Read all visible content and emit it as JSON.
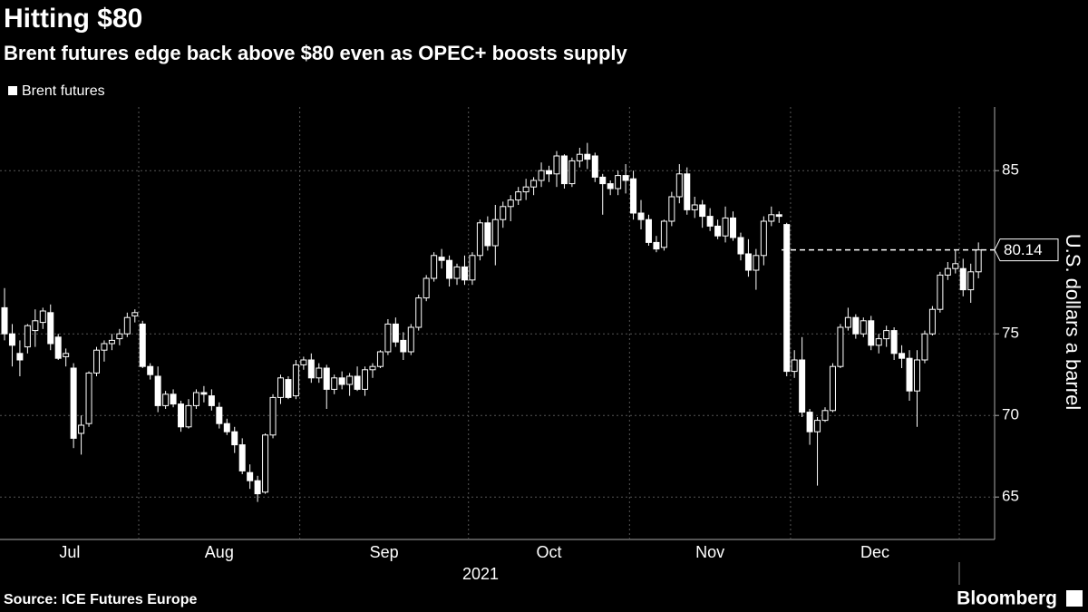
{
  "chart_data": {
    "type": "candlestick",
    "title": "Hitting $80",
    "subtitle": "Brent futures edge back above $80 even as OPEC+ boosts supply",
    "series_name": "Brent futures",
    "color": "#ffffff",
    "y_label": "U.S. dollars a barrel",
    "year_label": "2021",
    "last_value": 80.14,
    "ylim": [
      62.4,
      88.9
    ],
    "yticks": [
      65,
      70,
      75,
      85
    ],
    "grid": true,
    "source": "Source: ICE Futures Europe",
    "brand": "Bloomberg",
    "months": [
      {
        "label": "Jul",
        "ohlc": [
          [
            76.6,
            77.8,
            74.6,
            75.0
          ],
          [
            75.0,
            75.6,
            73.0,
            74.3
          ],
          [
            73.8,
            74.6,
            72.4,
            73.4
          ],
          [
            74.2,
            75.6,
            73.8,
            75.5
          ],
          [
            75.2,
            76.5,
            74.2,
            75.8
          ],
          [
            75.7,
            76.6,
            75.3,
            76.4
          ],
          [
            76.3,
            76.8,
            74.0,
            74.4
          ],
          [
            74.8,
            75.0,
            73.4,
            73.5
          ],
          [
            73.6,
            74.1,
            73.0,
            73.8
          ],
          [
            72.9,
            73.2,
            68.0,
            68.6
          ],
          [
            68.9,
            70.0,
            67.6,
            69.4
          ],
          [
            69.5,
            72.7,
            69.3,
            72.6
          ],
          [
            72.6,
            74.2,
            72.4,
            74.0
          ],
          [
            74.0,
            74.6,
            73.3,
            74.4
          ],
          [
            74.4,
            75.0,
            74.0,
            74.6
          ],
          [
            74.7,
            75.3,
            74.3,
            75.0
          ],
          [
            75.0,
            76.3,
            74.8,
            76.0
          ],
          [
            76.1,
            76.5,
            75.7,
            76.3
          ]
        ]
      },
      {
        "label": "Aug",
        "ohlc": [
          [
            75.6,
            75.8,
            72.9,
            73.0
          ],
          [
            73.0,
            73.2,
            72.2,
            72.5
          ],
          [
            72.4,
            73.0,
            70.2,
            70.6
          ],
          [
            70.6,
            71.5,
            70.4,
            71.3
          ],
          [
            71.3,
            71.6,
            70.5,
            70.7
          ],
          [
            70.7,
            70.9,
            69.0,
            69.3
          ],
          [
            69.3,
            71.0,
            69.2,
            70.6
          ],
          [
            70.6,
            71.6,
            70.4,
            71.4
          ],
          [
            71.4,
            71.8,
            70.8,
            71.3
          ],
          [
            71.2,
            71.6,
            70.3,
            70.6
          ],
          [
            70.5,
            70.8,
            69.2,
            69.5
          ],
          [
            69.5,
            69.8,
            68.8,
            69.0
          ],
          [
            69.0,
            69.3,
            67.7,
            68.2
          ],
          [
            68.2,
            68.6,
            66.4,
            66.6
          ],
          [
            66.5,
            67.0,
            65.5,
            66.0
          ],
          [
            66.0,
            66.3,
            64.7,
            65.2
          ],
          [
            65.3,
            68.9,
            65.2,
            68.8
          ],
          [
            68.8,
            71.3,
            68.6,
            71.1
          ],
          [
            71.1,
            72.5,
            70.7,
            72.3
          ],
          [
            72.2,
            72.4,
            71.0,
            71.1
          ],
          [
            71.2,
            73.4,
            71.0,
            73.1
          ]
        ]
      },
      {
        "label": "Sep",
        "ohlc": [
          [
            73.1,
            73.6,
            72.8,
            73.4
          ],
          [
            73.4,
            73.8,
            72.0,
            72.3
          ],
          [
            72.3,
            73.2,
            72.0,
            72.9
          ],
          [
            72.9,
            73.1,
            70.4,
            71.6
          ],
          [
            71.6,
            72.5,
            71.3,
            72.3
          ],
          [
            72.3,
            72.7,
            71.6,
            71.9
          ],
          [
            71.9,
            72.6,
            71.2,
            72.4
          ],
          [
            72.4,
            73.0,
            71.5,
            71.6
          ],
          [
            71.6,
            73.0,
            71.2,
            72.8
          ],
          [
            72.8,
            73.2,
            72.3,
            73.0
          ],
          [
            73.0,
            74.0,
            72.9,
            73.9
          ],
          [
            73.9,
            75.9,
            73.7,
            75.6
          ],
          [
            75.6,
            76.0,
            74.2,
            74.5
          ],
          [
            74.6,
            75.1,
            73.4,
            73.9
          ],
          [
            73.9,
            75.6,
            73.7,
            75.4
          ],
          [
            75.4,
            77.4,
            75.2,
            77.2
          ],
          [
            77.2,
            78.6,
            77.0,
            78.4
          ],
          [
            78.4,
            80.0,
            78.2,
            79.8
          ],
          [
            79.7,
            80.2,
            79.0,
            79.5
          ],
          [
            79.5,
            79.8,
            77.9,
            78.4
          ],
          [
            78.4,
            79.3,
            78.0,
            79.1
          ],
          [
            79.1,
            79.8,
            78.0,
            78.3
          ]
        ]
      },
      {
        "label": "Oct",
        "ohlc": [
          [
            78.3,
            80.0,
            78.0,
            79.8
          ],
          [
            79.8,
            82.0,
            79.5,
            81.8
          ],
          [
            81.8,
            82.2,
            80.1,
            80.4
          ],
          [
            80.4,
            82.9,
            79.2,
            82.0
          ],
          [
            82.0,
            83.1,
            81.5,
            82.8
          ],
          [
            82.8,
            83.5,
            81.9,
            83.2
          ],
          [
            83.2,
            84.0,
            82.9,
            83.7
          ],
          [
            83.7,
            84.5,
            83.2,
            84.0
          ],
          [
            84.0,
            84.6,
            83.5,
            84.4
          ],
          [
            84.4,
            85.5,
            84.0,
            85.0
          ],
          [
            85.0,
            85.3,
            84.3,
            84.8
          ],
          [
            84.8,
            86.2,
            84.0,
            85.9
          ],
          [
            85.9,
            86.0,
            83.9,
            84.2
          ],
          [
            84.2,
            85.8,
            84.0,
            85.6
          ],
          [
            85.6,
            86.4,
            85.2,
            86.0
          ],
          [
            86.0,
            86.7,
            85.1,
            85.7
          ],
          [
            85.9,
            86.1,
            84.3,
            84.6
          ],
          [
            84.6,
            84.8,
            82.3,
            84.2
          ],
          [
            84.2,
            84.4,
            83.5,
            83.9
          ],
          [
            83.9,
            85.0,
            83.5,
            84.7
          ],
          [
            84.7,
            85.4,
            83.6,
            84.4
          ]
        ]
      },
      {
        "label": "Nov",
        "ohlc": [
          [
            84.5,
            85.0,
            82.0,
            82.4
          ],
          [
            82.4,
            83.2,
            81.4,
            82.0
          ],
          [
            82.0,
            82.3,
            80.4,
            80.6
          ],
          [
            80.6,
            81.0,
            80.0,
            80.2
          ],
          [
            80.3,
            82.0,
            80.1,
            81.9
          ],
          [
            81.9,
            83.7,
            81.6,
            83.4
          ],
          [
            83.4,
            85.4,
            83.0,
            84.8
          ],
          [
            84.8,
            85.2,
            82.3,
            82.6
          ],
          [
            82.6,
            83.4,
            82.1,
            82.9
          ],
          [
            82.9,
            83.2,
            81.5,
            82.2
          ],
          [
            82.2,
            82.7,
            81.3,
            81.6
          ],
          [
            81.6,
            82.0,
            80.8,
            81.0
          ],
          [
            81.0,
            82.8,
            80.6,
            82.1
          ],
          [
            82.1,
            82.5,
            80.7,
            80.9
          ],
          [
            80.9,
            81.2,
            79.5,
            79.9
          ],
          [
            79.9,
            80.8,
            78.5,
            78.9
          ],
          [
            78.9,
            80.2,
            77.7,
            79.8
          ],
          [
            79.8,
            82.2,
            79.2,
            81.9
          ],
          [
            81.9,
            82.8,
            81.6,
            82.3
          ],
          [
            82.3,
            82.5,
            81.8,
            82.2
          ],
          [
            81.7,
            81.8,
            72.4,
            72.7
          ]
        ]
      },
      {
        "label": "Dec",
        "ohlc": [
          [
            72.7,
            74.0,
            72.3,
            73.4
          ],
          [
            73.4,
            74.8,
            69.9,
            70.2
          ],
          [
            70.2,
            70.4,
            68.2,
            69.0
          ],
          [
            69.0,
            69.9,
            65.7,
            69.7
          ],
          [
            69.7,
            70.5,
            69.6,
            70.3
          ],
          [
            70.3,
            73.2,
            70.2,
            73.0
          ],
          [
            73.0,
            75.6,
            72.9,
            75.4
          ],
          [
            75.4,
            76.6,
            75.2,
            76.0
          ],
          [
            76.0,
            76.2,
            74.7,
            75.0
          ],
          [
            75.0,
            76.0,
            74.8,
            75.8
          ],
          [
            75.8,
            76.1,
            74.0,
            74.3
          ],
          [
            74.3,
            75.0,
            73.8,
            74.7
          ],
          [
            74.7,
            75.5,
            74.2,
            75.2
          ],
          [
            75.2,
            75.4,
            73.4,
            73.8
          ],
          [
            73.8,
            74.3,
            72.9,
            73.5
          ],
          [
            73.5,
            74.0,
            70.9,
            71.5
          ],
          [
            71.5,
            74.0,
            69.3,
            73.4
          ],
          [
            73.4,
            75.2,
            73.2,
            75.0
          ],
          [
            75.0,
            76.7,
            74.9,
            76.5
          ],
          [
            76.5,
            78.8,
            76.3,
            78.6
          ],
          [
            78.6,
            79.4,
            78.3,
            79.0
          ],
          [
            79.0,
            80.1,
            78.7,
            79.3
          ]
        ]
      },
      {
        "label": null,
        "ohlc": [
          [
            79.0,
            79.6,
            77.3,
            77.7
          ],
          [
            77.7,
            79.3,
            76.9,
            78.8
          ],
          [
            78.8,
            80.6,
            78.4,
            80.14
          ]
        ]
      }
    ]
  }
}
